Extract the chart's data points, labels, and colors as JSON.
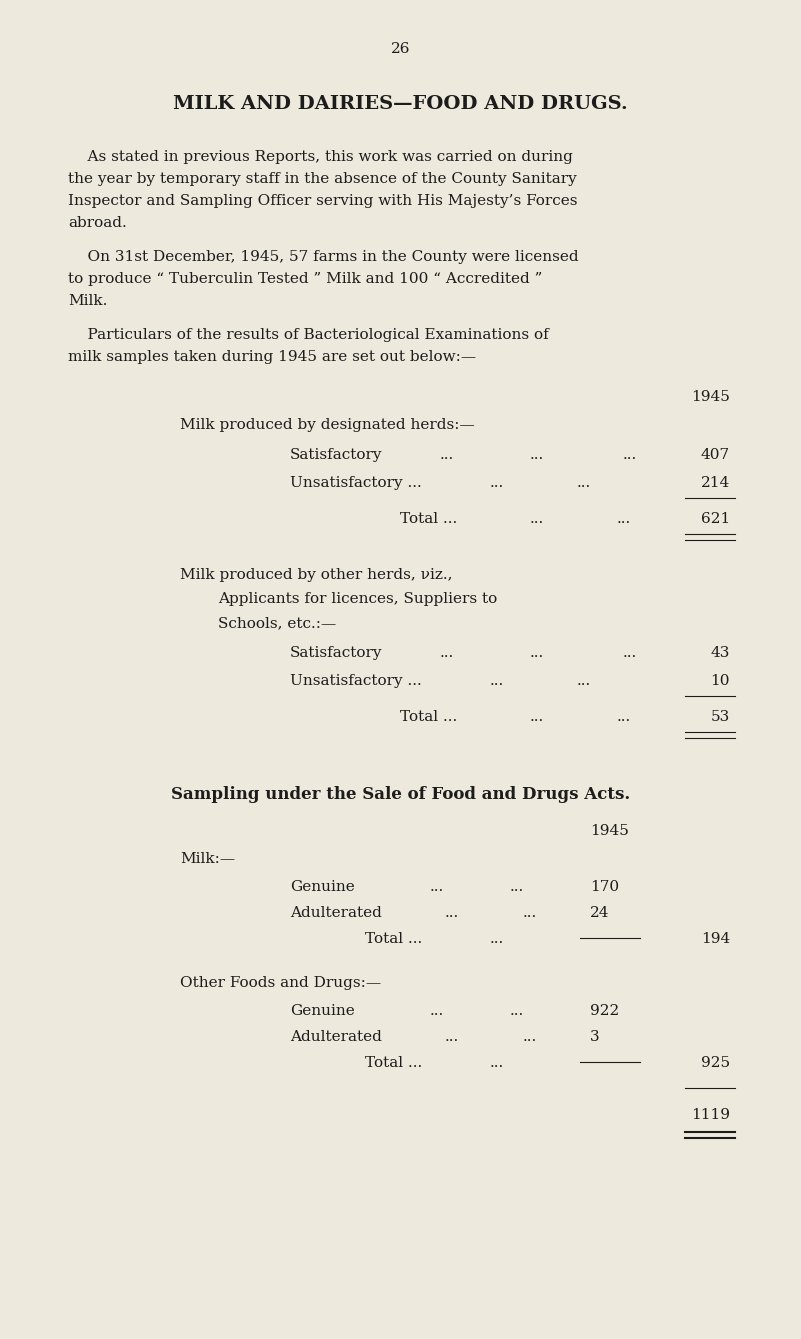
{
  "bg_color": "#ede9dc",
  "text_color": "#1c1c1c",
  "page_number": "26",
  "title": "MILK AND DAIRIES—FOOD AND DRUGS.",
  "para1_lines": [
    "    As stated in previous Reports, this work was carried on during",
    "the year by temporary staff in the absence of the County Sanitary",
    "Inspector and Sampling Officer serving with His Majesty’s Forces",
    "abroad."
  ],
  "para2_lines": [
    "    On 31st December, 1945, 57 farms in the County were licensed",
    "to produce “ Tuberculin Tested ” Milk and 100 “ Accredited ”",
    "Milk."
  ],
  "para3_lines": [
    "    Particulars of the results of Bacteriological Examinations of",
    "milk samples taken during 1945 are set out below:—"
  ],
  "year_col": "1945",
  "s1_head": "Milk produced by designated herds:—",
  "s1_sat_label": "Satisfactory",
  "s1_sat_val": "407",
  "s1_unsat_label": "Unsatisfactory ...",
  "s1_unsat_val": "214",
  "s1_total_label": "Total ...",
  "s1_total_val": "621",
  "s2_head1": "Milk produced by other herds, νiz.,",
  "s2_head2": "Applicants for licences, Suppliers to",
  "s2_head3": "Schools, etc.:—",
  "s2_sat_label": "Satisfactory",
  "s2_sat_val": "43",
  "s2_unsat_label": "Unsatisfactory ...",
  "s2_unsat_val": "10",
  "s2_total_label": "Total ...",
  "s2_total_val": "53",
  "sampling_head": "Sampling under the Sale of Food and Drugs Acts.",
  "year_col2": "1945",
  "milk_label": "Milk:—",
  "m_gen_label": "Genuine",
  "m_gen_val": "170",
  "m_adu_label": "Adulterated",
  "m_adu_val": "24",
  "m_tot_label": "Total ...",
  "m_tot_val": "194",
  "o_head": "Other Foods and Drugs:—",
  "o_gen_label": "Genuine",
  "o_gen_val": "922",
  "o_adu_label": "Adulterated",
  "o_adu_val": "3",
  "o_tot_label": "Total ...",
  "o_tot_val": "925",
  "grand_total": "1119"
}
